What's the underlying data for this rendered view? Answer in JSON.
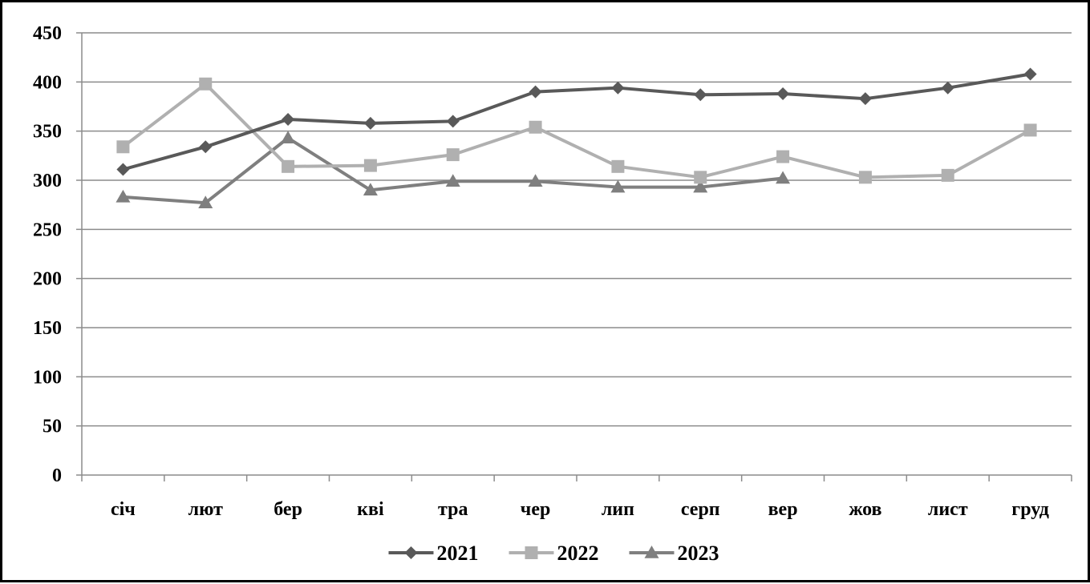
{
  "chart_data": {
    "type": "line",
    "title": "",
    "xlabel": "",
    "ylabel": "",
    "categories": [
      "січ",
      "лют",
      "бер",
      "кві",
      "тра",
      "чер",
      "лип",
      "серп",
      "вер",
      "жов",
      "лист",
      "груд"
    ],
    "ylim": [
      0,
      450
    ],
    "yticks": [
      0,
      50,
      100,
      150,
      200,
      250,
      300,
      350,
      400,
      450
    ],
    "grid": "horizontal",
    "legend": "bottom",
    "series": [
      {
        "name": "2021",
        "marker": "diamond",
        "color": "#595959",
        "values": [
          311,
          334,
          362,
          358,
          360,
          390,
          394,
          387,
          388,
          383,
          394,
          408
        ]
      },
      {
        "name": "2022",
        "marker": "square",
        "color": "#b0b0b0",
        "values": [
          334,
          398,
          314,
          315,
          326,
          354,
          314,
          303,
          324,
          303,
          305,
          351
        ]
      },
      {
        "name": "2023",
        "marker": "triangle",
        "color": "#7f7f7f",
        "values": [
          283,
          277,
          343,
          290,
          299,
          299,
          293,
          293,
          302,
          null,
          null,
          null
        ]
      }
    ]
  }
}
